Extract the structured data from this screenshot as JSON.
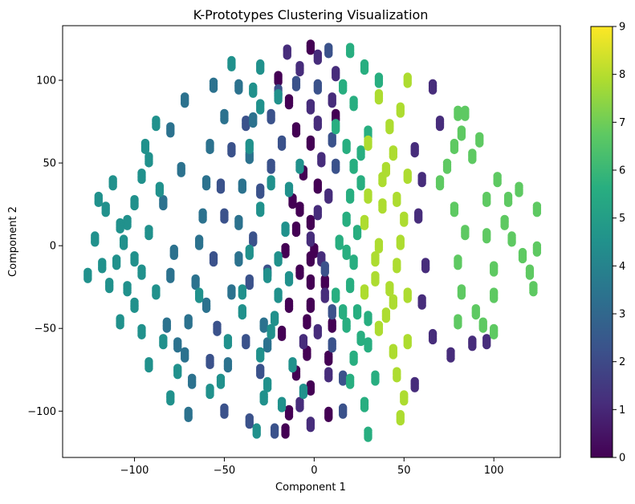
{
  "chart_data": {
    "type": "scatter",
    "title": "K-Prototypes Clustering Visualization",
    "xlabel": "Component 1",
    "ylabel": "Component 2",
    "xlim": [
      -140,
      137
    ],
    "ylim": [
      -128,
      133
    ],
    "x_ticks": [
      -100,
      -50,
      0,
      50,
      100
    ],
    "x_tick_labels": [
      "−100",
      "−50",
      "0",
      "50",
      "100"
    ],
    "y_ticks": [
      -100,
      -50,
      0,
      50,
      100
    ],
    "y_tick_labels": [
      "−100",
      "−50",
      "0",
      "50",
      "100"
    ],
    "grid": false,
    "colormap": "viridis",
    "colorbar": {
      "range": [
        0,
        9
      ],
      "ticks": [
        0,
        1,
        2,
        3,
        4,
        5,
        6,
        7,
        8,
        9
      ],
      "tick_labels": [
        "0",
        "1",
        "2",
        "3",
        "4",
        "5",
        "6",
        "7",
        "8",
        "9"
      ],
      "colors": [
        "#440154",
        "#472d7b",
        "#3b528b",
        "#2c728e",
        "#21918c",
        "#28ae80",
        "#5ec962",
        "#addc30",
        "#fde725"
      ]
    },
    "marker_color": "by cluster",
    "clusters": [
      {
        "cluster": 0,
        "points": [
          [
            -2,
            120
          ],
          [
            -14,
            87
          ],
          [
            -10,
            70
          ],
          [
            -2,
            62
          ],
          [
            -6,
            44
          ],
          [
            -12,
            27
          ],
          [
            -10,
            10
          ],
          [
            -16,
            -3
          ],
          [
            -8,
            -16
          ],
          [
            -14,
            -36
          ],
          [
            -18,
            -53
          ],
          [
            -4,
            -46
          ],
          [
            -10,
            -77
          ],
          [
            -14,
            -101
          ],
          [
            -16,
            -112
          ],
          [
            8,
            -102
          ],
          [
            -2,
            -86
          ],
          [
            -4,
            -65
          ],
          [
            -2,
            -36
          ],
          [
            -2,
            -22
          ],
          [
            0,
            -3
          ],
          [
            -8,
            22
          ],
          [
            2,
            36
          ],
          [
            -2,
            14
          ],
          [
            10,
            -48
          ],
          [
            8,
            -68
          ],
          [
            6,
            -22
          ],
          [
            12,
            78
          ],
          [
            -20,
            101
          ],
          [
            -2,
            -8
          ]
        ]
      },
      {
        "cluster": 1,
        "points": [
          [
            -15,
            117
          ],
          [
            -8,
            107
          ],
          [
            2,
            114
          ],
          [
            12,
            104
          ],
          [
            10,
            88
          ],
          [
            -2,
            84
          ],
          [
            2,
            74
          ],
          [
            4,
            52
          ],
          [
            8,
            30
          ],
          [
            2,
            20
          ],
          [
            -2,
            4
          ],
          [
            4,
            -8
          ],
          [
            6,
            -30
          ],
          [
            2,
            -52
          ],
          [
            -8,
            -96
          ],
          [
            -2,
            -108
          ],
          [
            8,
            -78
          ],
          [
            -6,
            -58
          ],
          [
            66,
            96
          ],
          [
            70,
            74
          ],
          [
            56,
            58
          ],
          [
            60,
            40
          ],
          [
            58,
            18
          ],
          [
            62,
            -12
          ],
          [
            60,
            -34
          ],
          [
            66,
            -55
          ],
          [
            56,
            -84
          ],
          [
            76,
            -66
          ],
          [
            88,
            -59
          ],
          [
            96,
            -58
          ]
        ]
      },
      {
        "cluster": 2,
        "points": [
          [
            8,
            118
          ],
          [
            2,
            96
          ],
          [
            -10,
            98
          ],
          [
            -20,
            93
          ],
          [
            -18,
            62
          ],
          [
            -24,
            48
          ],
          [
            -30,
            33
          ],
          [
            -34,
            4
          ],
          [
            -26,
            -16
          ],
          [
            -36,
            -22
          ],
          [
            -38,
            -58
          ],
          [
            -30,
            -76
          ],
          [
            -36,
            -106
          ],
          [
            -22,
            -112
          ],
          [
            16,
            -100
          ],
          [
            16,
            -80
          ],
          [
            10,
            -60
          ],
          [
            10,
            -40
          ],
          [
            6,
            -14
          ],
          [
            12,
            48
          ],
          [
            10,
            64
          ],
          [
            -24,
            78
          ],
          [
            -38,
            74
          ],
          [
            -46,
            58
          ],
          [
            -52,
            36
          ],
          [
            -50,
            18
          ],
          [
            -56,
            -8
          ],
          [
            -54,
            -50
          ],
          [
            -58,
            -70
          ],
          [
            -50,
            -100
          ]
        ]
      },
      {
        "cluster": 3,
        "points": [
          [
            -56,
            97
          ],
          [
            -50,
            78
          ],
          [
            -58,
            60
          ],
          [
            -60,
            38
          ],
          [
            -62,
            18
          ],
          [
            -64,
            2
          ],
          [
            -66,
            -22
          ],
          [
            -70,
            -46
          ],
          [
            -72,
            -66
          ],
          [
            -68,
            -82
          ],
          [
            -70,
            -102
          ],
          [
            -48,
            -72
          ],
          [
            -60,
            -36
          ],
          [
            -46,
            -28
          ],
          [
            -42,
            -8
          ],
          [
            -42,
            14
          ],
          [
            -40,
            36
          ],
          [
            -36,
            54
          ],
          [
            -34,
            76
          ],
          [
            -42,
            96
          ],
          [
            -72,
            88
          ],
          [
            -80,
            70
          ],
          [
            -74,
            46
          ],
          [
            -84,
            26
          ],
          [
            -78,
            -4
          ],
          [
            -80,
            -18
          ],
          [
            -82,
            -48
          ],
          [
            -76,
            -60
          ],
          [
            -28,
            -48
          ],
          [
            -26,
            -60
          ]
        ]
      },
      {
        "cluster": 4,
        "points": [
          [
            -88,
            74
          ],
          [
            -92,
            52
          ],
          [
            -96,
            42
          ],
          [
            -100,
            26
          ],
          [
            -104,
            14
          ],
          [
            -106,
            2
          ],
          [
            -110,
            -10
          ],
          [
            -114,
            -24
          ],
          [
            -100,
            -36
          ],
          [
            -96,
            -52
          ],
          [
            -92,
            -72
          ],
          [
            -108,
            -46
          ],
          [
            -118,
            -12
          ],
          [
            -122,
            4
          ],
          [
            -120,
            28
          ],
          [
            -126,
            -18
          ],
          [
            -92,
            8
          ],
          [
            -88,
            -28
          ],
          [
            -84,
            -58
          ],
          [
            -76,
            -76
          ],
          [
            -80,
            -92
          ],
          [
            -94,
            60
          ],
          [
            -100,
            -8
          ],
          [
            -86,
            34
          ],
          [
            -64,
            -30
          ],
          [
            -108,
            12
          ],
          [
            -116,
            22
          ],
          [
            -112,
            38
          ],
          [
            -104,
            -26
          ],
          [
            -96,
            -16
          ]
        ]
      },
      {
        "cluster": 5,
        "points": [
          [
            -46,
            110
          ],
          [
            -30,
            108
          ],
          [
            -34,
            94
          ],
          [
            -30,
            84
          ],
          [
            -20,
            90
          ],
          [
            -36,
            60
          ],
          [
            -24,
            38
          ],
          [
            -30,
            22
          ],
          [
            -16,
            10
          ],
          [
            -20,
            -8
          ],
          [
            -26,
            -18
          ],
          [
            -20,
            -30
          ],
          [
            -24,
            -52
          ],
          [
            -30,
            -66
          ],
          [
            -26,
            -84
          ],
          [
            -28,
            -92
          ],
          [
            -32,
            -112
          ],
          [
            -48,
            -58
          ],
          [
            -52,
            -82
          ],
          [
            -58,
            -88
          ],
          [
            -40,
            -28
          ],
          [
            -14,
            -20
          ],
          [
            -12,
            -72
          ],
          [
            -18,
            -96
          ],
          [
            -6,
            -88
          ],
          [
            -22,
            -44
          ],
          [
            -36,
            -4
          ],
          [
            -14,
            34
          ],
          [
            -8,
            48
          ],
          [
            -40,
            -40
          ]
        ]
      },
      {
        "cluster": 6,
        "points": [
          [
            20,
            118
          ],
          [
            28,
            108
          ],
          [
            16,
            96
          ],
          [
            22,
            86
          ],
          [
            12,
            72
          ],
          [
            18,
            60
          ],
          [
            22,
            48
          ],
          [
            20,
            30
          ],
          [
            18,
            16
          ],
          [
            14,
            2
          ],
          [
            22,
            -10
          ],
          [
            20,
            -24
          ],
          [
            24,
            -40
          ],
          [
            26,
            -56
          ],
          [
            22,
            -68
          ],
          [
            20,
            -82
          ],
          [
            28,
            -96
          ],
          [
            30,
            -114
          ],
          [
            34,
            -80
          ],
          [
            30,
            -60
          ],
          [
            30,
            -44
          ],
          [
            18,
            -48
          ],
          [
            16,
            -40
          ],
          [
            12,
            -30
          ],
          [
            18,
            -4
          ],
          [
            24,
            8
          ],
          [
            26,
            38
          ],
          [
            26,
            56
          ],
          [
            30,
            68
          ],
          [
            36,
            100
          ]
        ]
      },
      {
        "cluster": 7,
        "points": [
          [
            80,
            80
          ],
          [
            82,
            68
          ],
          [
            78,
            60
          ],
          [
            74,
            48
          ],
          [
            70,
            38
          ],
          [
            78,
            22
          ],
          [
            84,
            8
          ],
          [
            80,
            -10
          ],
          [
            82,
            -28
          ],
          [
            80,
            -46
          ],
          [
            90,
            -40
          ],
          [
            94,
            -48
          ],
          [
            100,
            -52
          ],
          [
            100,
            -30
          ],
          [
            100,
            -14
          ],
          [
            96,
            6
          ],
          [
            96,
            28
          ],
          [
            102,
            40
          ],
          [
            108,
            28
          ],
          [
            106,
            14
          ],
          [
            110,
            4
          ],
          [
            116,
            -6
          ],
          [
            122,
            -26
          ],
          [
            124,
            22
          ],
          [
            114,
            34
          ],
          [
            124,
            -2
          ],
          [
            120,
            -16
          ],
          [
            92,
            64
          ],
          [
            84,
            80
          ],
          [
            88,
            54
          ]
        ]
      },
      {
        "cluster": 8,
        "points": [
          [
            52,
            100
          ],
          [
            48,
            82
          ],
          [
            36,
            90
          ],
          [
            42,
            72
          ],
          [
            44,
            56
          ],
          [
            38,
            40
          ],
          [
            46,
            28
          ],
          [
            50,
            16
          ],
          [
            48,
            2
          ],
          [
            46,
            -12
          ],
          [
            42,
            -26
          ],
          [
            40,
            -42
          ],
          [
            36,
            -50
          ],
          [
            44,
            -64
          ],
          [
            46,
            -78
          ],
          [
            48,
            -104
          ],
          [
            50,
            -92
          ],
          [
            34,
            -20
          ],
          [
            36,
            0
          ],
          [
            30,
            30
          ],
          [
            28,
            14
          ],
          [
            34,
            -8
          ],
          [
            40,
            46
          ],
          [
            30,
            62
          ],
          [
            44,
            -34
          ],
          [
            52,
            -58
          ],
          [
            52,
            -30
          ],
          [
            52,
            42
          ],
          [
            38,
            24
          ],
          [
            28,
            -28
          ]
        ]
      }
    ]
  }
}
